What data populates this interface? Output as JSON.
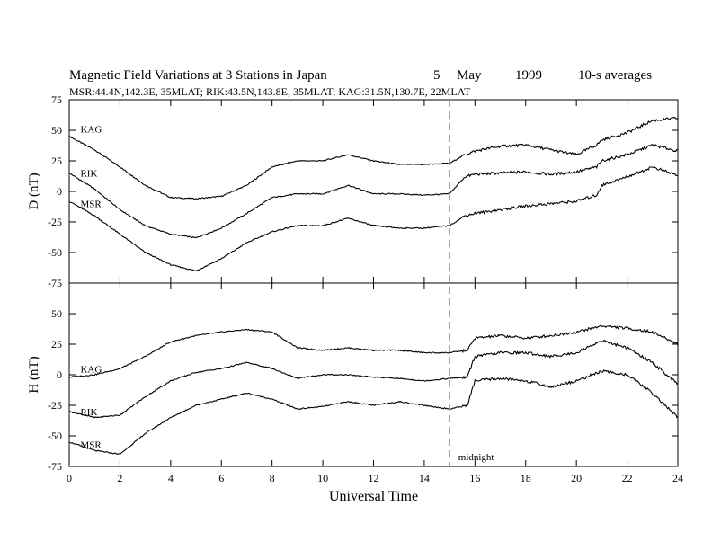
{
  "title": {
    "main": "Magnetic Field Variations at 3 Stations in Japan",
    "day": "5",
    "month": "May",
    "year": "1999",
    "averaging": "10-s averages",
    "stations": "MSR:44.4N,142.3E, 35MLAT;  RIK:43.5N,143.8E, 35MLAT;  KAG:31.5N,130.7E, 22MLAT"
  },
  "chart_data": [
    {
      "type": "line",
      "panel": "top",
      "ylabel": "D (nT)",
      "xlim": [
        0,
        24
      ],
      "ylim": [
        -75,
        75
      ],
      "yticks": [
        -75,
        -50,
        -25,
        0,
        25,
        50,
        75
      ],
      "xticks": [
        0,
        2,
        4,
        6,
        8,
        10,
        12,
        14,
        16,
        18,
        20,
        22,
        24
      ],
      "grid": false,
      "x": [
        0,
        1,
        2,
        3,
        4,
        5,
        6,
        7,
        8,
        9,
        10,
        11,
        12,
        13,
        14,
        15,
        15.6,
        16,
        17,
        18,
        19,
        20,
        20.8,
        21,
        22,
        23,
        24
      ],
      "series": [
        {
          "name": "KAG",
          "values": [
            45,
            34,
            20,
            5,
            -5,
            -6,
            -4,
            5,
            20,
            25,
            25,
            30,
            25,
            22,
            22,
            23,
            30,
            33,
            37,
            38,
            34,
            30,
            38,
            42,
            48,
            58,
            60
          ]
        },
        {
          "name": "RIK",
          "values": [
            15,
            2,
            -15,
            -28,
            -35,
            -38,
            -30,
            -18,
            -5,
            -2,
            -2,
            5,
            -2,
            -2,
            -3,
            -2,
            12,
            14,
            15,
            16,
            14,
            16,
            20,
            25,
            30,
            38,
            33
          ]
        },
        {
          "name": "MSR",
          "values": [
            -8,
            -20,
            -35,
            -50,
            -60,
            -65,
            -55,
            -42,
            -33,
            -28,
            -28,
            -22,
            -28,
            -30,
            -30,
            -28,
            -20,
            -18,
            -15,
            -12,
            -10,
            -8,
            -3,
            5,
            12,
            20,
            13
          ]
        }
      ],
      "annotations": [
        {
          "text": "KAG",
          "x": 0.3,
          "y": 48
        },
        {
          "text": "RIK",
          "x": 0.3,
          "y": 12
        },
        {
          "text": "MSR",
          "x": 0.3,
          "y": -13
        }
      ]
    },
    {
      "type": "line",
      "panel": "bottom",
      "ylabel": "H (nT)",
      "xlabel": "Universal Time",
      "xlim": [
        0,
        24
      ],
      "ylim": [
        -75,
        75
      ],
      "yticks": [
        -75,
        -50,
        -25,
        0,
        25,
        50
      ],
      "xticks": [
        0,
        2,
        4,
        6,
        8,
        10,
        12,
        14,
        16,
        18,
        20,
        22,
        24
      ],
      "grid": false,
      "x": [
        0,
        1,
        2,
        3,
        4,
        5,
        6,
        7,
        8,
        9,
        10,
        11,
        12,
        13,
        14,
        15,
        15.7,
        16,
        17,
        18,
        19,
        20,
        21,
        22,
        23,
        24
      ],
      "series": [
        {
          "name": "KAG",
          "values": [
            -2,
            0,
            5,
            15,
            27,
            32,
            35,
            37,
            35,
            22,
            20,
            22,
            20,
            20,
            18,
            18,
            20,
            30,
            32,
            30,
            32,
            35,
            40,
            38,
            35,
            25
          ]
        },
        {
          "name": "RIK",
          "values": [
            -30,
            -35,
            -33,
            -18,
            -5,
            2,
            5,
            10,
            5,
            -3,
            0,
            0,
            -2,
            -3,
            -5,
            -3,
            -2,
            15,
            18,
            18,
            15,
            18,
            28,
            22,
            10,
            -8
          ]
        },
        {
          "name": "MSR",
          "values": [
            -55,
            -62,
            -65,
            -48,
            -35,
            -25,
            -20,
            -15,
            -20,
            -28,
            -26,
            -22,
            -25,
            -22,
            -25,
            -28,
            -25,
            -5,
            -3,
            -5,
            -10,
            -5,
            3,
            0,
            -15,
            -35
          ]
        }
      ],
      "annotations": [
        {
          "text": "KAG",
          "x": 0.3,
          "y": 2
        },
        {
          "text": "RIK",
          "x": 0.3,
          "y": -33
        },
        {
          "text": "MSR",
          "x": 0.3,
          "y": -60
        },
        {
          "text": "midnight",
          "x": 15.2,
          "y": -70
        }
      ]
    }
  ],
  "midnight_marker": {
    "x": 15,
    "label": "midnight",
    "color": "#999999",
    "style": "dashed"
  }
}
